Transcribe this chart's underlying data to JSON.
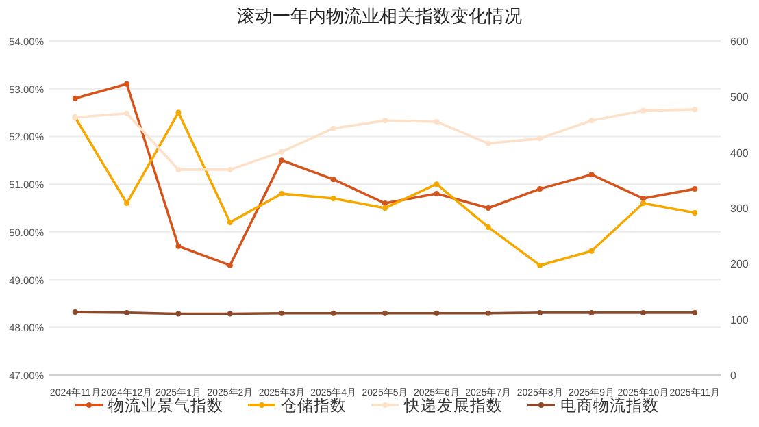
{
  "chart_data": {
    "type": "line",
    "title": "滚动一年内物流业相关指数变化情况",
    "categories": [
      "2024年11月",
      "2024年12月",
      "2025年1月",
      "2025年2月",
      "2025年3月",
      "2025年4月",
      "2025年5月",
      "2025年6月",
      "2025年7月",
      "2025年8月",
      "2025年9月",
      "2025年10月",
      "2025年11月"
    ],
    "series": [
      {
        "name": "物流业景气指数",
        "color": "#d4541c",
        "values": [
          52.8,
          53.1,
          49.7,
          49.3,
          51.5,
          51.1,
          50.6,
          50.8,
          50.5,
          50.9,
          51.2,
          50.7,
          50.9
        ]
      },
      {
        "name": "仓储指数",
        "color": "#f5a800",
        "values": [
          52.4,
          50.6,
          52.5,
          50.2,
          50.8,
          50.7,
          50.5,
          51.0,
          50.1,
          49.3,
          49.6,
          50.6,
          50.4
        ]
      },
      {
        "name": "快递发展指数",
        "color": "#fde0c8",
        "axis": "y2",
        "values": [
          463,
          470,
          369,
          369,
          401,
          443,
          457,
          455,
          416,
          425,
          457,
          475,
          477
        ]
      },
      {
        "name": "电商物流指数",
        "color": "#8b4a2b",
        "axis": "y2",
        "values": [
          113,
          112,
          110,
          110,
          111,
          111,
          111,
          111,
          111,
          112,
          112,
          112,
          112
        ]
      }
    ],
    "ylim": [
      47,
      54
    ],
    "yticks": [
      {
        "value": 47,
        "label": "47.00%"
      },
      {
        "value": 48,
        "label": "48.00%"
      },
      {
        "value": 49,
        "label": "49.00%"
      },
      {
        "value": 50,
        "label": "50.00%"
      },
      {
        "value": 51,
        "label": "51.00%"
      },
      {
        "value": 52,
        "label": "52.00%"
      },
      {
        "value": 53,
        "label": "53.00%"
      },
      {
        "value": 54,
        "label": "54.00%"
      }
    ],
    "y2lim": [
      0,
      600
    ],
    "y2ticks": [
      0,
      100,
      200,
      300,
      400,
      500,
      600
    ],
    "grid": "y",
    "legend": "bottom",
    "marker": "circle",
    "line_style": "solid"
  }
}
